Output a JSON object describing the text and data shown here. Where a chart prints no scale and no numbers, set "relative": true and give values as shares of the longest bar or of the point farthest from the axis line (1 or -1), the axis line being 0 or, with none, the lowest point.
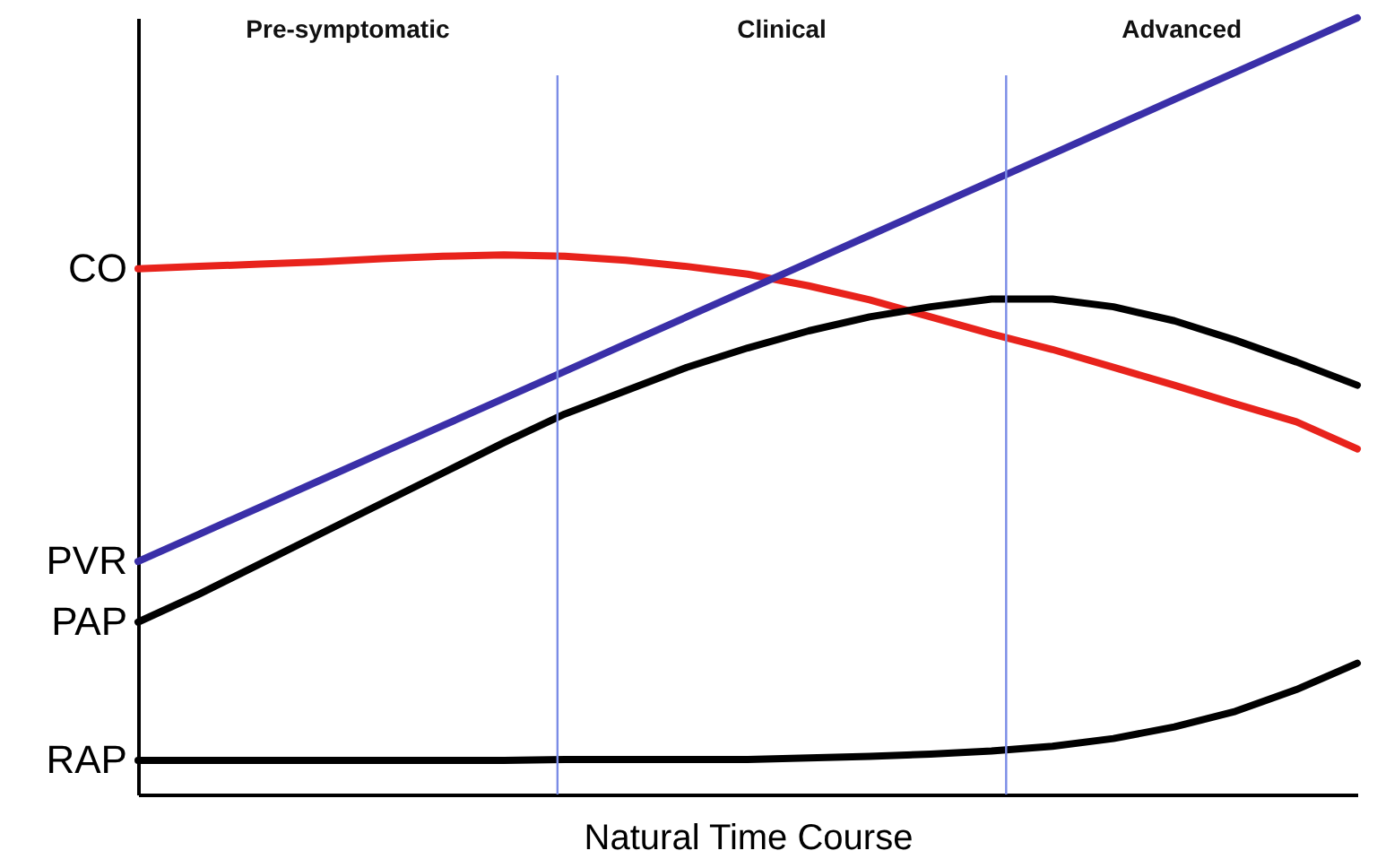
{
  "chart_data": {
    "type": "line",
    "relative": true,
    "xlabel": "Natural Time Course",
    "categories": [
      null,
      null,
      null,
      null,
      null,
      null,
      null,
      null,
      null,
      null,
      null,
      null,
      null,
      null,
      null,
      null,
      null,
      null,
      null,
      null,
      null
    ],
    "series": [
      {
        "name": "CO",
        "color": "#e8231c",
        "values": [
          0.677,
          0.68,
          0.683,
          0.686,
          0.69,
          0.693,
          0.695,
          0.693,
          0.688,
          0.68,
          0.67,
          0.655,
          0.637,
          0.615,
          0.593,
          0.573,
          0.55,
          0.527,
          0.503,
          0.48,
          0.445
        ]
      },
      {
        "name": "PVR",
        "color": "#3a2fa8",
        "values": [
          0.3,
          0.335,
          0.37,
          0.405,
          0.44,
          0.475,
          0.51,
          0.545,
          0.58,
          0.615,
          0.65,
          0.685,
          0.72,
          0.755,
          0.79,
          0.825,
          0.86,
          0.895,
          0.93,
          0.965,
          1.0
        ]
      },
      {
        "name": "PAP",
        "color": "#000000",
        "values": [
          0.222,
          0.258,
          0.297,
          0.336,
          0.375,
          0.414,
          0.453,
          0.49,
          0.52,
          0.55,
          0.575,
          0.597,
          0.615,
          0.628,
          0.638,
          0.638,
          0.628,
          0.61,
          0.585,
          0.557,
          0.527
        ]
      },
      {
        "name": "RAP",
        "color": "#000000",
        "values": [
          0.044,
          0.044,
          0.044,
          0.044,
          0.044,
          0.044,
          0.044,
          0.045,
          0.045,
          0.045,
          0.045,
          0.047,
          0.049,
          0.052,
          0.056,
          0.062,
          0.072,
          0.087,
          0.107,
          0.135,
          0.169
        ]
      }
    ],
    "annotations": [
      "Pre-symptomatic",
      "Clinical",
      "Advanced"
    ]
  }
}
